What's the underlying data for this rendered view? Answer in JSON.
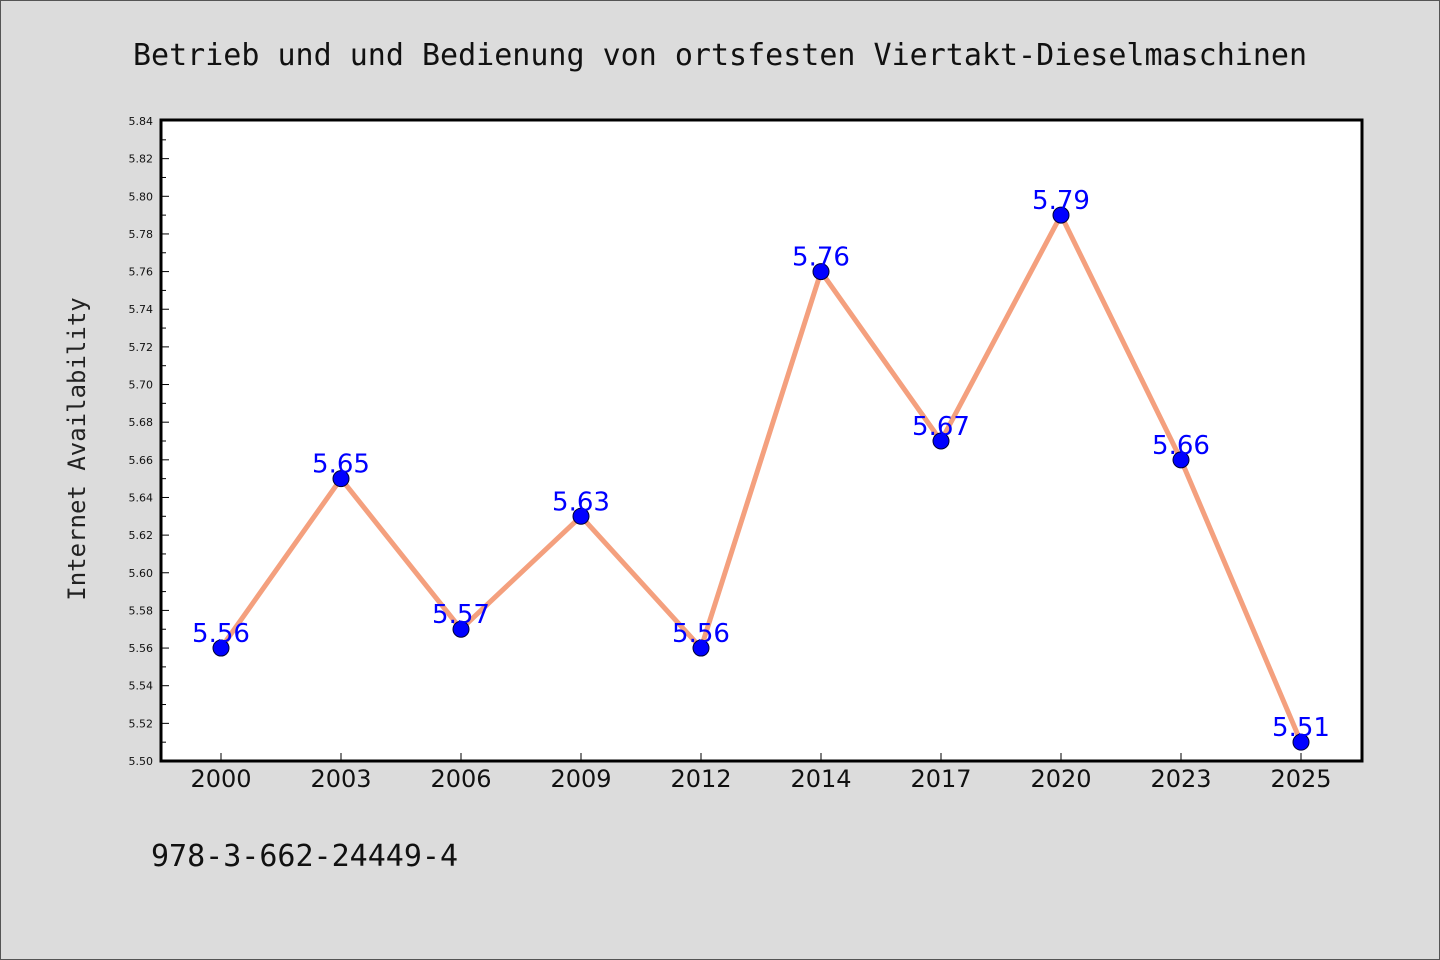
{
  "chart_data": {
    "type": "line",
    "title": "Betrieb und und Bedienung von ortsfesten Viertakt-Dieselmaschinen",
    "xlabel": "",
    "ylabel": "Internet Availability",
    "categories": [
      "2000",
      "2003",
      "2006",
      "2009",
      "2012",
      "2014",
      "2017",
      "2020",
      "2023",
      "2025"
    ],
    "values": [
      5.56,
      5.65,
      5.57,
      5.63,
      5.56,
      5.76,
      5.67,
      5.79,
      5.66,
      5.51
    ],
    "data_labels": [
      "5.56",
      "5.65",
      "5.57",
      "5.63",
      "5.56",
      "5.76",
      "5.67",
      "5.79",
      "5.66",
      "5.51"
    ],
    "ylim": [
      5.5,
      5.84
    ],
    "yticks": [
      "5.50",
      "5.52",
      "5.54",
      "5.56",
      "5.58",
      "5.60",
      "5.62",
      "5.64",
      "5.66",
      "5.68",
      "5.70",
      "5.72",
      "5.74",
      "5.76",
      "5.78",
      "5.80",
      "5.82",
      "5.84"
    ],
    "grid": false,
    "colors": {
      "line": "#f4a07e",
      "marker": "#0000ff",
      "data_label": "#0000ff",
      "plot_background": "#ffffff",
      "figure_background": "#dcdcdc"
    }
  },
  "footer": {
    "isbn": "978-3-662-24449-4"
  }
}
